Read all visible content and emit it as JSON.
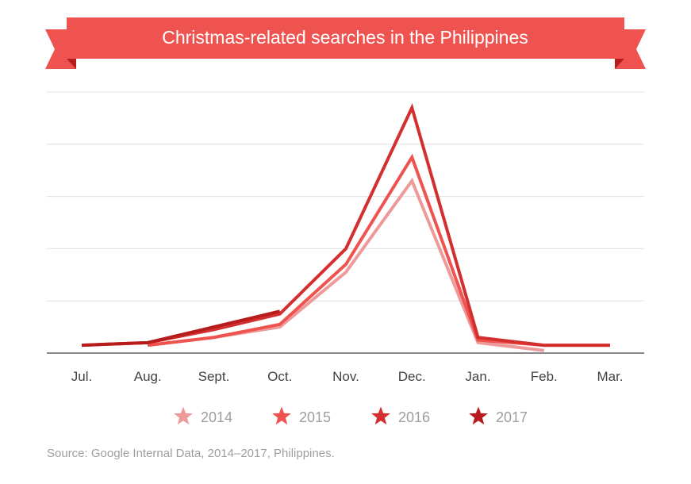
{
  "colors": {
    "ribbon": "#ef5350",
    "ribbon_fold": "#b71c1c",
    "grid": "#e0e0e0",
    "axis": "#616161",
    "tick_text": "#424242",
    "legend_text": "#9e9e9e"
  },
  "chart_data": {
    "type": "line",
    "title": "Christmas-related searches in the Philippines",
    "xlabel": "",
    "ylabel": "",
    "categories": [
      "Jul.",
      "Aug.",
      "Sept.",
      "Oct.",
      "Nov.",
      "Dec.",
      "Jan.",
      "Feb.",
      "Mar."
    ],
    "ylim": [
      0,
      100
    ],
    "grid": true,
    "legend_position": "bottom",
    "series": [
      {
        "name": "2014",
        "color": "#ef9a9a",
        "values": [
          null,
          3,
          6,
          10,
          31,
          66,
          4,
          1,
          null
        ]
      },
      {
        "name": "2015",
        "color": "#ef5350",
        "values": [
          null,
          3,
          6,
          11,
          34,
          75,
          5,
          3,
          3
        ]
      },
      {
        "name": "2016",
        "color": "#d32f2f",
        "values": [
          3,
          4,
          9,
          15,
          40,
          94,
          6,
          3,
          3
        ]
      },
      {
        "name": "2017",
        "color": "#b71c1c",
        "values": [
          3,
          4,
          10,
          16,
          null,
          null,
          null,
          null,
          null
        ]
      }
    ]
  },
  "source": "Source: Google Internal Data, 2014–2017, Philippines."
}
